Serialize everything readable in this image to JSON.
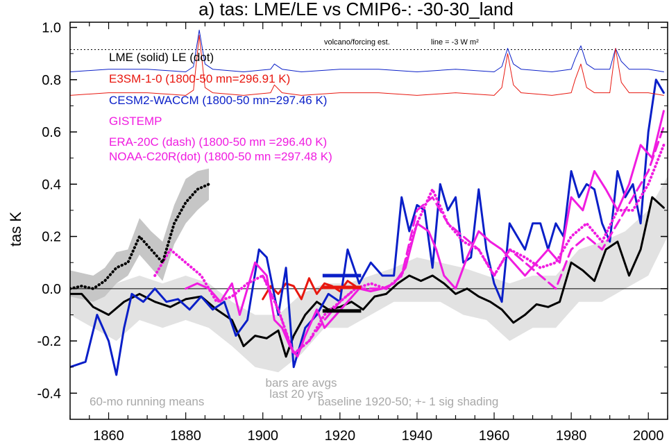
{
  "chart_data": {
    "type": "line",
    "title": "a) tas: LME/LE vs CMIP6-: -30-30_land",
    "ylabel": "tas K",
    "xlim": [
      1850,
      2005
    ],
    "ylim": [
      -0.5,
      1.02
    ],
    "x_ticks": [
      1860,
      1880,
      1900,
      1920,
      1940,
      1960,
      1980,
      2000
    ],
    "y_ticks": [
      -0.4,
      -0.2,
      0.0,
      0.2,
      0.4,
      0.6,
      0.8,
      1.0
    ],
    "y_tick_labels": [
      "-0.4",
      "-0.2",
      "0.0",
      "0.2",
      "0.4",
      "0.6",
      "0.8",
      "1.0"
    ],
    "zero_line": 0.0,
    "forcing_reference_level": 0.915,
    "volcano_label": "volcano/forcing est.",
    "forcing_line_label": "line = -3 W m²",
    "legend": [
      {
        "text": "LME (solid)   LE (dot)",
        "color": "#000000"
      },
      {
        "text": "E3SM-1-0 (1800-50 mn=296.91 K)",
        "color": "#e8170f"
      },
      {
        "text": "CESM2-WACCM (1800-50 mn=297.46 K)",
        "color": "#0a1fc8"
      },
      {
        "text": "GISTEMP",
        "color": "#f01ce0"
      },
      {
        "text": "ERA-20C (dash) (1800-50 mn =296.40 K)",
        "color": "#f01ce0"
      },
      {
        "text": "NOAA-C20R(dot) (1800-50 mn =297.48 K)",
        "color": "#f01ce0"
      }
    ],
    "annotations": {
      "bars_note_line1": "bars are avgs",
      "bars_note_line2": "last 20 yrs",
      "running_mean_note": "60-mo running means",
      "baseline_note": "baseline 1920-50; +- 1 sig shading"
    },
    "series": [
      {
        "name": "LME (solid)",
        "color": "#000000",
        "style": "solid",
        "width": 3,
        "x": [
          1850,
          1853,
          1856,
          1860,
          1864,
          1868,
          1872,
          1876,
          1880,
          1884,
          1888,
          1892,
          1895,
          1898,
          1901,
          1904,
          1906,
          1908,
          1911,
          1914,
          1917,
          1920,
          1923,
          1926,
          1929,
          1932,
          1935,
          1938,
          1941,
          1944,
          1947,
          1950,
          1953,
          1956,
          1959,
          1962,
          1965,
          1968,
          1971,
          1974,
          1977,
          1980,
          1983,
          1986,
          1989,
          1992,
          1995,
          1998,
          2001,
          2004
        ],
        "y": [
          -0.02,
          -0.02,
          -0.07,
          -0.1,
          -0.05,
          -0.02,
          -0.05,
          -0.07,
          -0.04,
          -0.03,
          -0.08,
          -0.12,
          -0.22,
          -0.18,
          -0.19,
          -0.16,
          -0.26,
          -0.18,
          -0.1,
          -0.05,
          -0.08,
          -0.07,
          -0.05,
          -0.08,
          -0.03,
          -0.02,
          0.02,
          0.05,
          0.03,
          0.05,
          0.02,
          -0.02,
          0.0,
          -0.03,
          -0.05,
          -0.08,
          -0.13,
          -0.1,
          -0.06,
          -0.07,
          -0.05,
          0.1,
          0.07,
          0.03,
          0.15,
          0.18,
          0.05,
          0.15,
          0.35,
          0.31
        ]
      },
      {
        "name": "E3SM-1-0",
        "color": "#e8170f",
        "style": "solid",
        "width": 3,
        "x": [
          1900,
          1902,
          1904,
          1906,
          1908,
          1910,
          1912,
          1914,
          1916,
          1918,
          1920,
          1922,
          1924
        ],
        "y": [
          -0.04,
          0.01,
          -0.02,
          0.02,
          0.01,
          -0.04,
          0.04,
          -0.02,
          0.02,
          0.01,
          -0.01,
          0.03,
          0.01
        ]
      },
      {
        "name": "CESM2-WACCM",
        "color": "#0a1fc8",
        "style": "solid",
        "width": 3,
        "x": [
          1850,
          1854,
          1857,
          1860,
          1862,
          1864,
          1866,
          1869,
          1872,
          1875,
          1878,
          1881,
          1884,
          1887,
          1890,
          1893,
          1896,
          1899,
          1901,
          1904,
          1906,
          1908,
          1911,
          1914,
          1917,
          1920,
          1922,
          1925,
          1928,
          1931,
          1934,
          1936,
          1938,
          1940,
          1942,
          1944,
          1946,
          1948,
          1950,
          1952,
          1954,
          1956,
          1958,
          1960,
          1962,
          1964,
          1966,
          1968,
          1970,
          1972,
          1974,
          1976,
          1978,
          1980,
          1982,
          1984,
          1986,
          1988,
          1990,
          1992,
          1994,
          1996,
          1998,
          2000,
          2002,
          2004
        ],
        "y": [
          -0.3,
          -0.28,
          -0.1,
          -0.2,
          -0.33,
          -0.15,
          -0.02,
          -0.05,
          0.0,
          -0.05,
          -0.04,
          -0.08,
          -0.03,
          -0.08,
          -0.05,
          -0.18,
          -0.12,
          0.15,
          0.12,
          -0.1,
          0.08,
          -0.3,
          -0.15,
          -0.1,
          -0.02,
          -0.05,
          0.15,
          0.02,
          0.1,
          0.05,
          0.05,
          0.35,
          0.22,
          0.32,
          0.3,
          0.08,
          0.4,
          0.3,
          0.35,
          0.1,
          0.12,
          0.38,
          0.15,
          0.02,
          -0.05,
          0.25,
          0.2,
          0.15,
          0.25,
          0.25,
          0.15,
          0.25,
          0.2,
          0.45,
          0.35,
          0.4,
          0.38,
          0.25,
          0.18,
          0.45,
          0.35,
          0.4,
          0.25,
          0.6,
          0.8,
          0.75
        ]
      },
      {
        "name": "GISTEMP",
        "color": "#f01ce0",
        "style": "solid",
        "width": 3,
        "x": [
          1880,
          1883,
          1886,
          1889,
          1892,
          1894,
          1896,
          1898,
          1901,
          1903,
          1905,
          1907,
          1909,
          1911,
          1914,
          1916,
          1919,
          1922,
          1925,
          1928,
          1931,
          1934,
          1937,
          1940,
          1943,
          1945,
          1947,
          1950,
          1953,
          1956,
          1959,
          1962,
          1965,
          1968,
          1971,
          1974,
          1977,
          1980,
          1983,
          1986,
          1989,
          1992,
          1995,
          1998,
          2001,
          2004
        ],
        "y": [
          0.0,
          0.02,
          0.0,
          -0.05,
          0.02,
          -0.1,
          0.0,
          0.1,
          0.05,
          -0.12,
          -0.15,
          -0.22,
          -0.26,
          -0.18,
          -0.08,
          -0.15,
          -0.1,
          -0.05,
          0.0,
          -0.01,
          0.0,
          0.02,
          0.08,
          0.25,
          0.22,
          0.15,
          0.05,
          0.0,
          0.12,
          0.22,
          0.18,
          0.15,
          0.1,
          0.05,
          0.1,
          0.15,
          0.1,
          0.35,
          0.3,
          0.45,
          0.38,
          0.3,
          0.4,
          0.55,
          0.5,
          0.68
        ]
      },
      {
        "name": "ERA-20C",
        "color": "#f01ce0",
        "style": "dash",
        "width": 3,
        "x": [
          1900,
          1904,
          1908,
          1912,
          1916,
          1920,
          1924,
          1928,
          1932,
          1936,
          1940,
          1944,
          1948,
          1952,
          1956,
          1960,
          1964,
          1968,
          1972,
          1976,
          1980,
          1984,
          1988,
          1992,
          1996,
          2000,
          2004
        ],
        "y": [
          0.05,
          -0.08,
          -0.25,
          -0.2,
          -0.12,
          -0.05,
          0.0,
          0.0,
          0.0,
          0.05,
          0.3,
          0.35,
          0.25,
          0.2,
          0.15,
          0.05,
          0.15,
          0.1,
          0.05,
          0.0,
          0.15,
          0.2,
          0.15,
          0.25,
          0.35,
          0.45,
          0.62
        ]
      },
      {
        "name": "NOAA-C20R",
        "color": "#f01ce0",
        "style": "dot",
        "width": 3,
        "x": [
          1872,
          1876,
          1880,
          1884,
          1888,
          1892,
          1896,
          1900,
          1904,
          1908,
          1912,
          1916,
          1920,
          1924,
          1928,
          1932,
          1936,
          1940,
          1944,
          1948,
          1952,
          1956,
          1960,
          1964,
          1968,
          1972,
          1976,
          1980,
          1984,
          1988,
          1992,
          1996,
          2000,
          2004
        ],
        "y": [
          0.05,
          0.15,
          0.1,
          0.05,
          -0.05,
          -0.03,
          0.02,
          0.05,
          -0.08,
          -0.25,
          -0.2,
          -0.1,
          -0.05,
          0.0,
          0.02,
          0.0,
          0.05,
          0.25,
          0.38,
          0.25,
          0.18,
          0.15,
          0.05,
          0.15,
          0.12,
          0.08,
          0.1,
          0.2,
          0.25,
          0.18,
          0.3,
          0.3,
          0.4,
          0.55
        ]
      },
      {
        "name": "LE (dot)",
        "color": "#000000",
        "style": "dot",
        "width": 3,
        "x": [
          1850,
          1853,
          1856,
          1859,
          1862,
          1865,
          1868,
          1871,
          1874,
          1877,
          1880,
          1883,
          1886
        ],
        "y": [
          0.0,
          0.01,
          0.0,
          0.03,
          0.08,
          0.1,
          0.2,
          0.15,
          0.1,
          0.25,
          0.33,
          0.38,
          0.4
        ]
      },
      {
        "name": "forcing (blue)",
        "color": "#0a1fc8",
        "style": "solid",
        "width": 1,
        "x": [
          1850,
          1860,
          1870,
          1880,
          1882,
          1883.5,
          1885,
          1887,
          1895,
          1902,
          1903,
          1905,
          1910,
          1920,
          1930,
          1940,
          1950,
          1960,
          1962,
          1963.5,
          1965,
          1967,
          1975,
          1980,
          1981,
          1982.5,
          1984,
          1986,
          1990,
          1991.5,
          1993,
          1995,
          2000,
          2004
        ],
        "y": [
          0.83,
          0.84,
          0.84,
          0.83,
          0.85,
          0.99,
          0.86,
          0.84,
          0.83,
          0.84,
          0.86,
          0.84,
          0.83,
          0.84,
          0.84,
          0.83,
          0.84,
          0.83,
          0.85,
          0.92,
          0.86,
          0.84,
          0.83,
          0.84,
          0.88,
          0.93,
          0.86,
          0.84,
          0.84,
          0.92,
          0.87,
          0.84,
          0.84,
          0.83
        ]
      },
      {
        "name": "forcing (red)",
        "color": "#e8170f",
        "style": "solid",
        "width": 1,
        "x": [
          1850,
          1860,
          1870,
          1880,
          1882,
          1883.5,
          1885,
          1887,
          1895,
          1902,
          1903,
          1905,
          1910,
          1920,
          1930,
          1940,
          1950,
          1960,
          1962,
          1963.5,
          1965,
          1967,
          1975,
          1980,
          1981,
          1982.5,
          1984,
          1986,
          1990,
          1991.5,
          1993,
          1995,
          2000,
          2004
        ],
        "y": [
          0.74,
          0.75,
          0.75,
          0.74,
          0.76,
          0.97,
          0.77,
          0.75,
          0.74,
          0.75,
          0.78,
          0.75,
          0.74,
          0.75,
          0.75,
          0.74,
          0.75,
          0.74,
          0.77,
          0.9,
          0.78,
          0.75,
          0.74,
          0.75,
          0.8,
          0.86,
          0.77,
          0.75,
          0.75,
          0.92,
          0.79,
          0.75,
          0.75,
          0.74
        ]
      }
    ],
    "shading": [
      {
        "name": "LME +-1 sig",
        "color": "#e2e2e2",
        "x": [
          1850,
          1856,
          1862,
          1868,
          1874,
          1880,
          1886,
          1892,
          1898,
          1904,
          1910,
          1916,
          1922,
          1928,
          1934,
          1940,
          1946,
          1952,
          1958,
          1964,
          1970,
          1976,
          1982,
          1988,
          1994,
          2000,
          2005
        ],
        "lower": [
          -0.1,
          -0.15,
          -0.2,
          -0.12,
          -0.15,
          -0.12,
          -0.15,
          -0.22,
          -0.3,
          -0.32,
          -0.25,
          -0.15,
          -0.15,
          -0.1,
          -0.05,
          -0.05,
          -0.05,
          -0.1,
          -0.12,
          -0.2,
          -0.15,
          -0.15,
          -0.05,
          -0.05,
          0.0,
          0.05,
          0.2
        ],
        "upper": [
          0.07,
          0.05,
          0.02,
          0.05,
          0.02,
          0.05,
          0.02,
          -0.05,
          -0.1,
          -0.1,
          -0.02,
          0.02,
          0.02,
          0.05,
          0.08,
          0.12,
          0.1,
          0.08,
          0.05,
          0.02,
          0.05,
          0.05,
          0.15,
          0.18,
          0.22,
          0.3,
          0.43
        ]
      },
      {
        "name": "LE +-1 sig",
        "color": "#c6c6c6",
        "x": [
          1850,
          1853,
          1856,
          1859,
          1862,
          1865,
          1868,
          1871,
          1874,
          1877,
          1880,
          1883,
          1886
        ],
        "lower": [
          -0.03,
          -0.04,
          -0.05,
          -0.03,
          0.02,
          0.05,
          0.13,
          0.08,
          0.03,
          0.17,
          0.25,
          0.3,
          0.34
        ],
        "upper": [
          0.07,
          0.06,
          0.05,
          0.08,
          0.14,
          0.15,
          0.27,
          0.22,
          0.18,
          0.32,
          0.42,
          0.45,
          0.46
        ]
      }
    ],
    "bars": [
      {
        "name": "CESM2-WACCM avg",
        "color": "#0a1fc8",
        "x0": 1915.5,
        "x1": 1925.5,
        "y": 0.05
      },
      {
        "name": "E3SM-1-0 avg",
        "color": "#e8170f",
        "x0": 1915.5,
        "x1": 1925.5,
        "y": 0.005
      },
      {
        "name": "LME avg",
        "color": "#000000",
        "x0": 1915.5,
        "x1": 1925.5,
        "y": -0.085
      }
    ]
  }
}
